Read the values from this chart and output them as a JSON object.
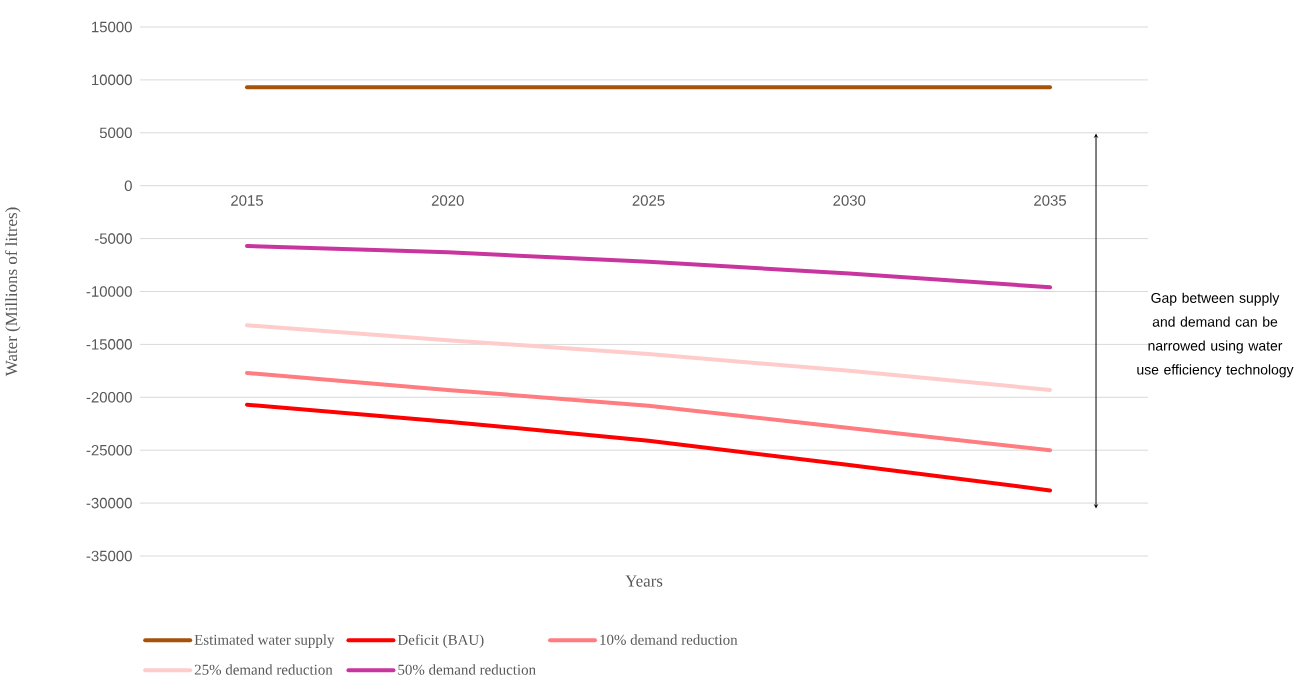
{
  "chart_data": {
    "type": "line",
    "xlabel": "Years",
    "ylabel": "Water (Millions of litres)",
    "categories": [
      "2015",
      "2020",
      "2025",
      "2030",
      "2035"
    ],
    "series": [
      {
        "name": "Estimated water supply",
        "color": "#a5520a",
        "values": [
          9300,
          9300,
          9300,
          9300,
          9300
        ]
      },
      {
        "name": "Deficit (BAU)",
        "color": "#ff0000",
        "values": [
          -20700,
          -22300,
          -24100,
          -26400,
          -28800
        ]
      },
      {
        "name": "10% demand reduction",
        "color": "#ff7c80",
        "values": [
          -17700,
          -19300,
          -20800,
          -22900,
          -25000
        ]
      },
      {
        "name": "25% demand reduction",
        "color": "#ffcccc",
        "values": [
          -13200,
          -14600,
          -15900,
          -17500,
          -19300
        ]
      },
      {
        "name": "50% demand reduction",
        "color": "#c9359f",
        "values": [
          -5700,
          -6300,
          -7200,
          -8300,
          -9600
        ]
      }
    ],
    "ylim": [
      -35000,
      15000
    ],
    "yticks": [
      -35000,
      -30000,
      -25000,
      -20000,
      -15000,
      -10000,
      -5000,
      0,
      5000,
      10000,
      15000
    ],
    "grid": "y",
    "legend": "bottom",
    "annotations": [
      "Gap between supply and demand can be narrowed using water use efficiency technology"
    ]
  }
}
